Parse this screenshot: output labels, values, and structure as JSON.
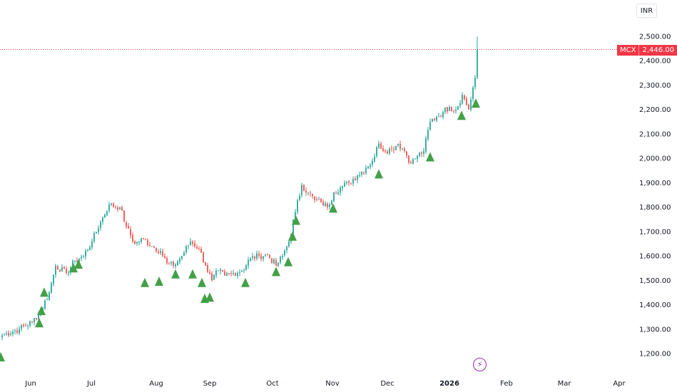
{
  "currency": "INR",
  "price_tag": {
    "symbol": "MCX",
    "value": "2,446.00"
  },
  "event_icon": "lightning-icon",
  "colors": {
    "up": "#26a69a",
    "down": "#ef5350",
    "marker": "#43a047",
    "price_line": "#f23645",
    "event": "#9c27b0"
  },
  "chart_data": {
    "type": "candlestick",
    "title": "",
    "xlabel": "",
    "ylabel": "",
    "x_ticks": [
      "Jun",
      "Jul",
      "Aug",
      "Sep",
      "Oct",
      "Nov",
      "Dec",
      "2026",
      "Feb",
      "Mar",
      "Apr"
    ],
    "y_ticks": [
      "1,200.00",
      "1,300.00",
      "1,400.00",
      "1,500.00",
      "1,600.00",
      "1,700.00",
      "1,800.00",
      "1,900.00",
      "2,000.00",
      "2,100.00",
      "2,200.00",
      "2,300.00",
      "2,400.00",
      "2,500.00"
    ],
    "ylim": [
      1150,
      2560
    ],
    "last_price": 2446,
    "close_anchors": [
      [
        0,
        1275
      ],
      [
        8,
        1300
      ],
      [
        14,
        1330
      ],
      [
        18,
        1375
      ],
      [
        22,
        1450
      ],
      [
        25,
        1560
      ],
      [
        30,
        1530
      ],
      [
        34,
        1580
      ],
      [
        38,
        1600
      ],
      [
        42,
        1660
      ],
      [
        46,
        1740
      ],
      [
        50,
        1810
      ],
      [
        55,
        1800
      ],
      [
        58,
        1720
      ],
      [
        62,
        1650
      ],
      [
        66,
        1670
      ],
      [
        70,
        1640
      ],
      [
        74,
        1620
      ],
      [
        77,
        1570
      ],
      [
        80,
        1560
      ],
      [
        84,
        1600
      ],
      [
        88,
        1660
      ],
      [
        92,
        1630
      ],
      [
        95,
        1560
      ],
      [
        98,
        1500
      ],
      [
        101,
        1540
      ],
      [
        104,
        1520
      ],
      [
        108,
        1530
      ],
      [
        112,
        1540
      ],
      [
        116,
        1590
      ],
      [
        120,
        1600
      ],
      [
        124,
        1605
      ],
      [
        128,
        1560
      ],
      [
        131,
        1600
      ],
      [
        134,
        1660
      ],
      [
        137,
        1780
      ],
      [
        140,
        1890
      ],
      [
        143,
        1860
      ],
      [
        146,
        1830
      ],
      [
        149,
        1820
      ],
      [
        152,
        1800
      ],
      [
        155,
        1860
      ],
      [
        158,
        1880
      ],
      [
        162,
        1900
      ],
      [
        166,
        1930
      ],
      [
        170,
        1960
      ],
      [
        173,
        1990
      ],
      [
        176,
        2060
      ],
      [
        179,
        2030
      ],
      [
        182,
        2040
      ],
      [
        185,
        2060
      ],
      [
        188,
        2030
      ],
      [
        191,
        1980
      ],
      [
        194,
        2010
      ],
      [
        197,
        2030
      ],
      [
        200,
        2150
      ],
      [
        203,
        2170
      ],
      [
        206,
        2190
      ],
      [
        209,
        2210
      ],
      [
        212,
        2200
      ],
      [
        215,
        2260
      ],
      [
        218,
        2200
      ],
      [
        220,
        2290
      ],
      [
        221,
        2330
      ],
      [
        222,
        2446
      ]
    ],
    "signals": [
      1185,
      1325,
      1375,
      1450,
      1550,
      1565,
      1490,
      1495,
      1525,
      1525,
      1490,
      1425,
      1430,
      1490,
      1535,
      1575,
      1680,
      1745,
      1795,
      1935,
      2005,
      2175,
      2225
    ]
  }
}
